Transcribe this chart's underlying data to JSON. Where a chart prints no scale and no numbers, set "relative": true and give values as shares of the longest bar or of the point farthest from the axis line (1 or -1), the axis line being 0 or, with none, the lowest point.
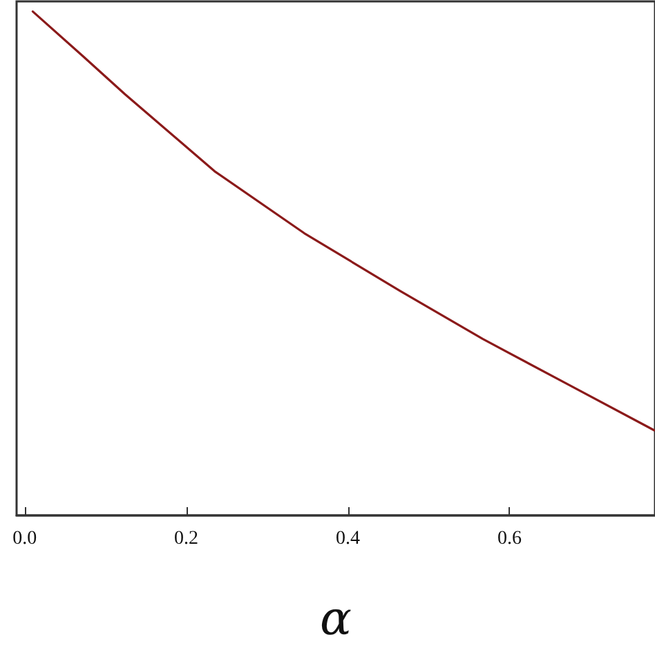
{
  "chart_data": {
    "type": "line",
    "xlabel": "α",
    "relative": true,
    "color": "#8b1a1a",
    "x": [
      0.01,
      0.073,
      0.124,
      0.235,
      0.346,
      0.465,
      0.567,
      0.67,
      0.779
    ],
    "values": [
      1,
      0.91,
      0.836,
      0.683,
      0.56,
      0.445,
      0.35,
      0.262,
      0.169
    ],
    "xlim": [
      -0.01,
      0.78
    ],
    "xticks": [
      {
        "value": 0,
        "label": "0.0"
      },
      0.2,
      0.4,
      0.6
    ],
    "tick_labels": "x",
    "marker": "none",
    "line_style": "solid"
  }
}
